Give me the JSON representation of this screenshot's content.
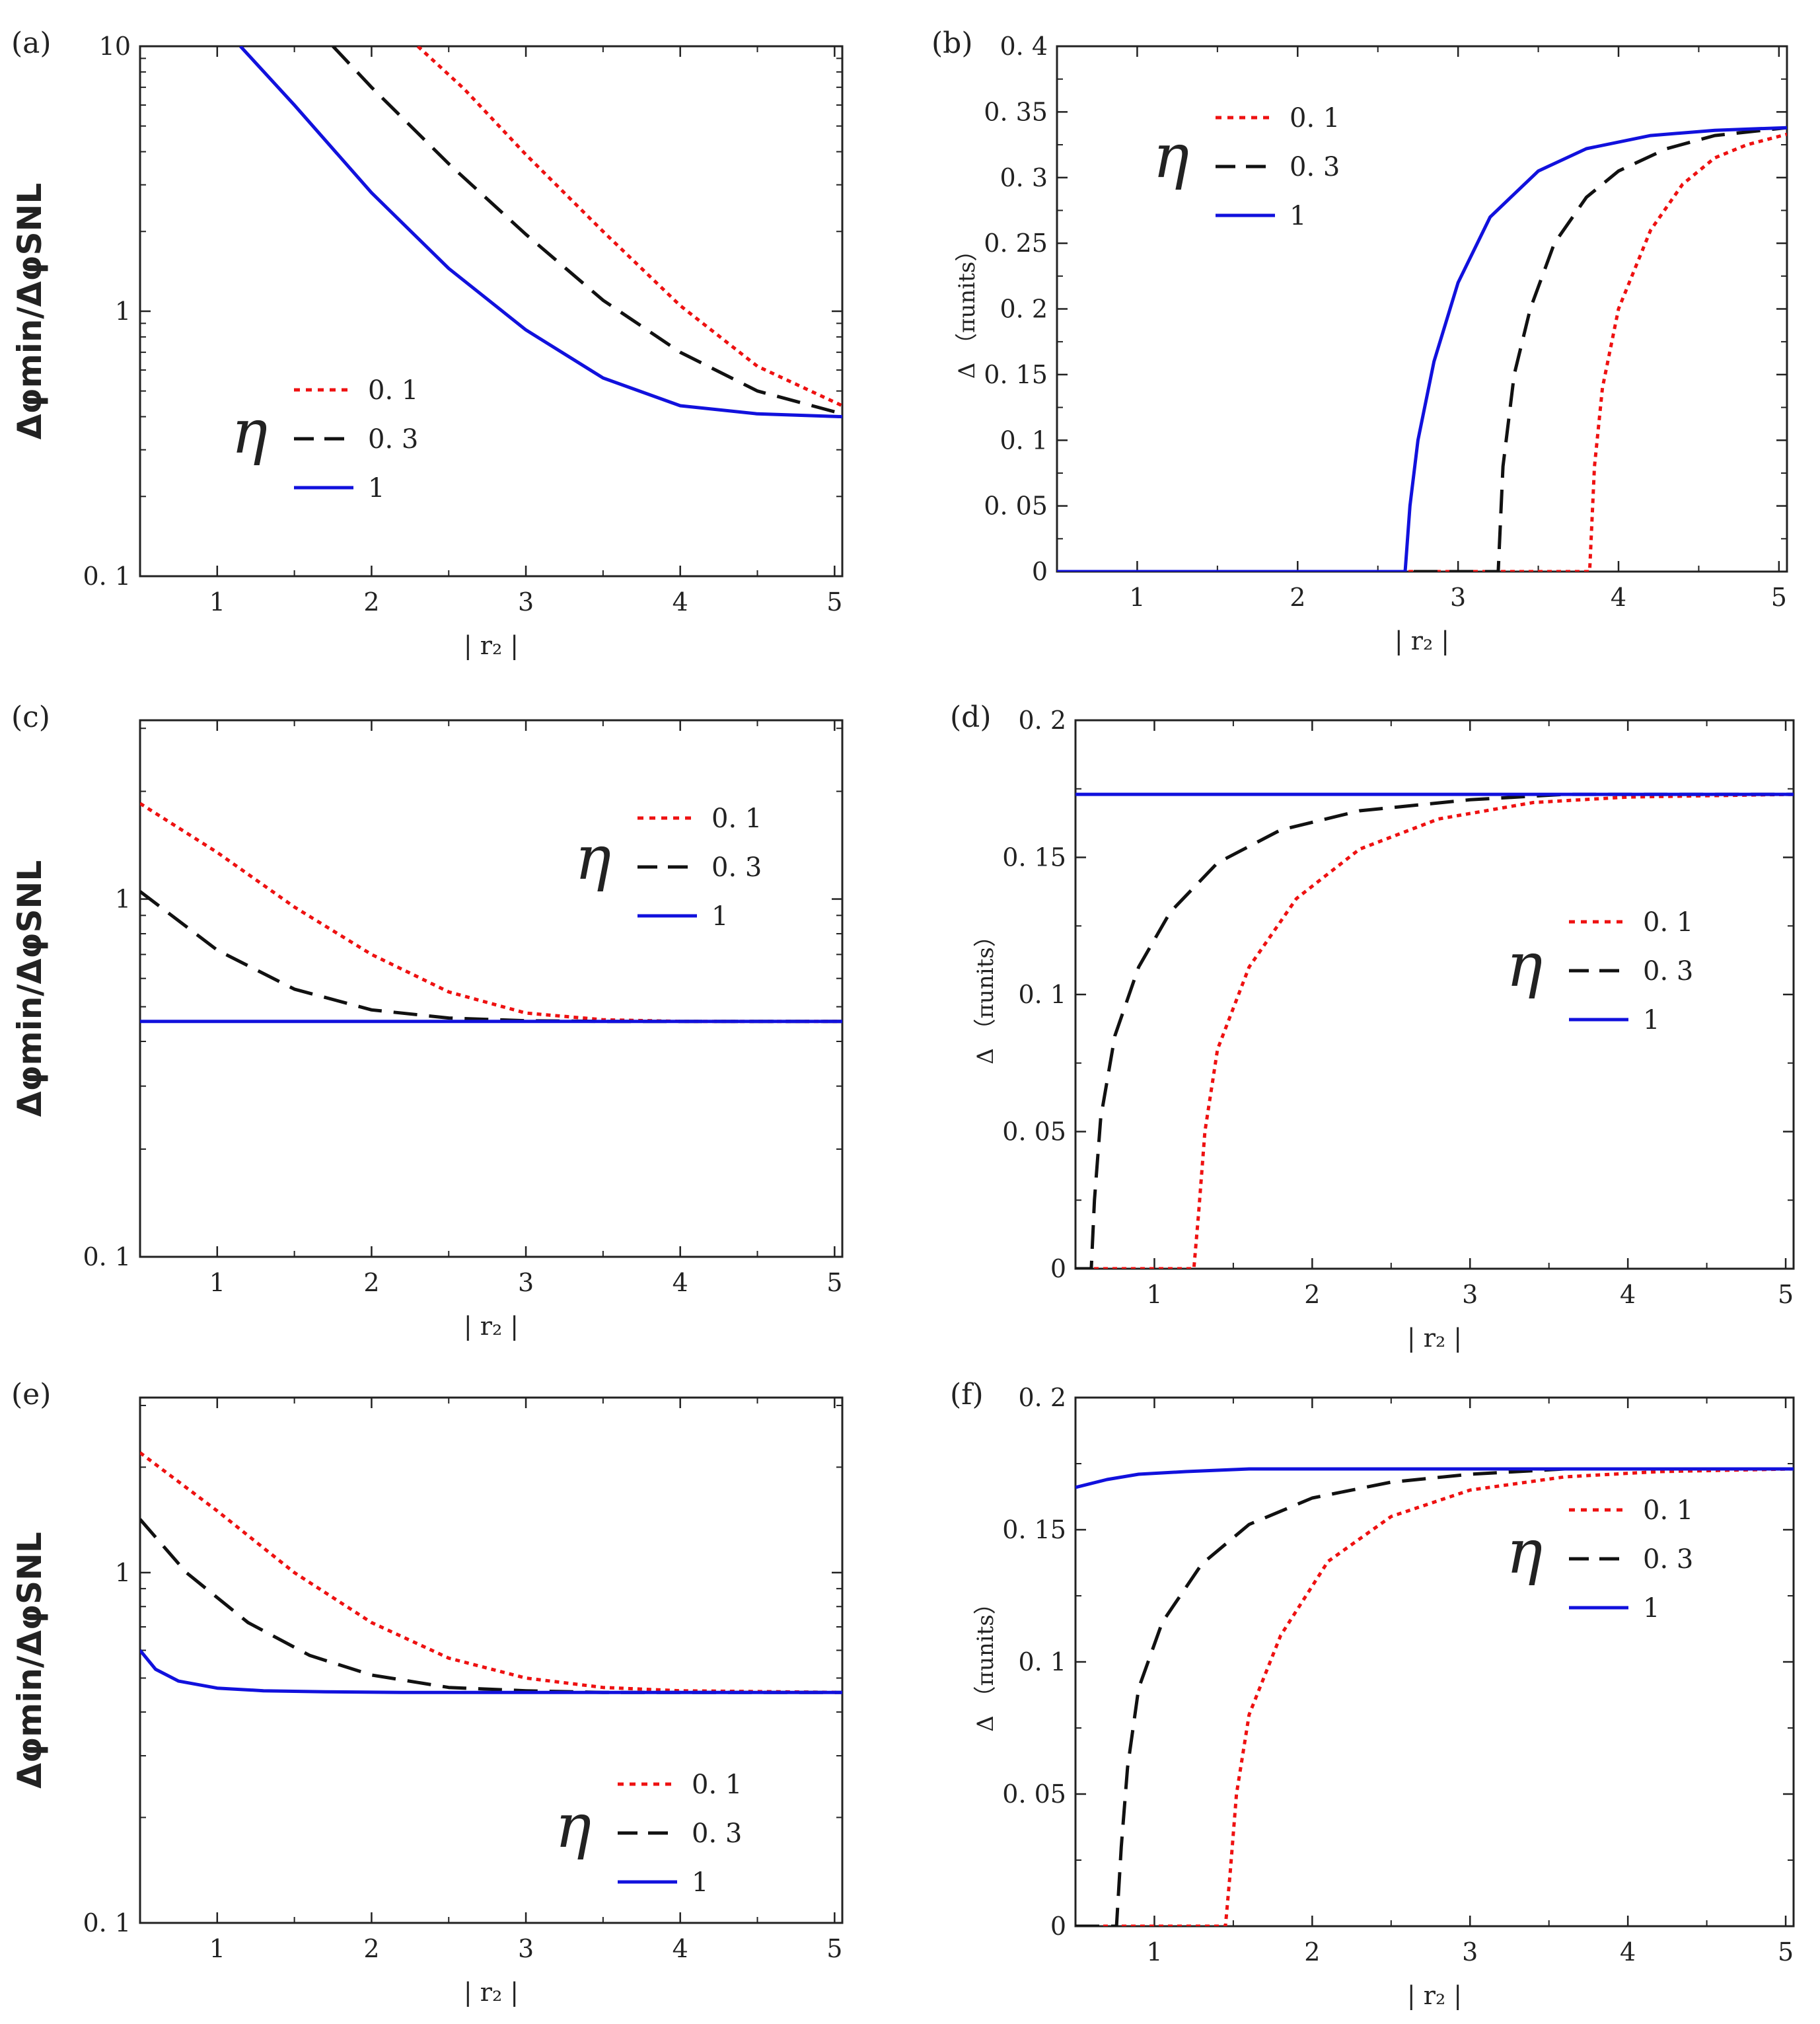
{
  "figure": {
    "description_free": true,
    "colors": {
      "eta_0_1": "#ee1111",
      "eta_0_3": "#111111",
      "eta_1": "#1111dd",
      "axes": "#222222"
    }
  },
  "chart_data": [
    {
      "panel": "(a)",
      "type": "line",
      "xlabel": "| r₂ |",
      "ylabel": "Δφmin/ΔφSNL",
      "yscale": "log",
      "xlim": [
        0.5,
        5.05
      ],
      "ylim": [
        0.1,
        10
      ],
      "xticks": [
        1,
        2,
        3,
        4,
        5
      ],
      "xtick_labels": [
        "1",
        "2",
        "3",
        "4",
        "5"
      ],
      "yticks": [
        0.1,
        1,
        10
      ],
      "ytick_labels": [
        "0. 1",
        "1",
        "10"
      ],
      "legend_title": "η",
      "legend_location": "lower-center",
      "series": [
        {
          "name": "0. 1",
          "style": "dotted",
          "color": "#ee1111",
          "x": [
            2.3,
            2.6,
            3.0,
            3.5,
            4.0,
            4.5,
            5.05
          ],
          "y": [
            10,
            6.9,
            3.9,
            2.0,
            1.05,
            0.62,
            0.44
          ]
        },
        {
          "name": "0. 3",
          "style": "dashed",
          "color": "#111111",
          "x": [
            1.75,
            2.0,
            2.5,
            3.0,
            3.5,
            4.0,
            4.5,
            5.05
          ],
          "y": [
            10,
            7.0,
            3.6,
            1.95,
            1.1,
            0.7,
            0.5,
            0.41
          ]
        },
        {
          "name": "1",
          "style": "solid",
          "color": "#1111dd",
          "x": [
            1.15,
            1.5,
            2.0,
            2.5,
            3.0,
            3.5,
            4.0,
            4.5,
            5.05
          ],
          "y": [
            10,
            6.0,
            2.8,
            1.45,
            0.85,
            0.56,
            0.44,
            0.41,
            0.4
          ]
        }
      ]
    },
    {
      "panel": "(b)",
      "type": "line",
      "xlabel": "| r₂ |",
      "ylabel": "Δ （πunits）",
      "xlim": [
        0.5,
        5.05
      ],
      "ylim": [
        0,
        0.4
      ],
      "xticks": [
        1,
        2,
        3,
        4,
        5
      ],
      "xtick_labels": [
        "1",
        "2",
        "3",
        "4",
        "5"
      ],
      "yticks": [
        0,
        0.05,
        0.1,
        0.15,
        0.2,
        0.25,
        0.3,
        0.35,
        0.4
      ],
      "ytick_labels": [
        "0",
        "0. 05",
        "0. 1",
        "0. 15",
        "0. 2",
        "0. 25",
        "0. 3",
        "0. 35",
        "0. 4"
      ],
      "legend_title": "η",
      "legend_location": "top-left",
      "series": [
        {
          "name": "0. 1",
          "style": "dotted",
          "color": "#ee1111",
          "x": [
            0.5,
            3.82,
            3.85,
            3.9,
            4.0,
            4.2,
            4.4,
            4.6,
            4.8,
            5.05
          ],
          "y": [
            0,
            0,
            0.08,
            0.14,
            0.2,
            0.26,
            0.295,
            0.315,
            0.325,
            0.333
          ]
        },
        {
          "name": "0. 3",
          "style": "dashed",
          "color": "#111111",
          "x": [
            0.5,
            3.25,
            3.28,
            3.35,
            3.45,
            3.6,
            3.8,
            4.0,
            4.3,
            4.6,
            5.05
          ],
          "y": [
            0,
            0,
            0.08,
            0.15,
            0.2,
            0.25,
            0.285,
            0.305,
            0.322,
            0.332,
            0.338
          ]
        },
        {
          "name": "1",
          "style": "solid",
          "color": "#1111dd",
          "x": [
            0.5,
            2.67,
            2.7,
            2.75,
            2.85,
            3.0,
            3.2,
            3.5,
            3.8,
            4.2,
            4.6,
            5.05
          ],
          "y": [
            0,
            0,
            0.05,
            0.1,
            0.16,
            0.22,
            0.27,
            0.305,
            0.322,
            0.332,
            0.336,
            0.338
          ]
        }
      ]
    },
    {
      "panel": "(c)",
      "type": "line",
      "xlabel": "| r₂ |",
      "ylabel": "Δφmin/ΔφSNL",
      "yscale": "log",
      "xlim": [
        0.5,
        5.05
      ],
      "ylim": [
        0.1,
        3.16
      ],
      "xticks": [
        1,
        2,
        3,
        4,
        5
      ],
      "xtick_labels": [
        "1",
        "2",
        "3",
        "4",
        "5"
      ],
      "yticks": [
        0.1,
        1
      ],
      "ytick_labels": [
        "0. 1",
        "1"
      ],
      "legend_title": "η",
      "legend_location": "top-right",
      "series": [
        {
          "name": "0. 1",
          "style": "dotted",
          "color": "#ee1111",
          "x": [
            0.5,
            1.0,
            1.5,
            2.0,
            2.5,
            3.0,
            3.5,
            4.0,
            5.05
          ],
          "y": [
            1.85,
            1.35,
            0.95,
            0.7,
            0.55,
            0.48,
            0.46,
            0.455,
            0.455
          ]
        },
        {
          "name": "0. 3",
          "style": "dashed",
          "color": "#111111",
          "x": [
            0.5,
            1.0,
            1.5,
            2.0,
            2.5,
            3.0,
            3.5,
            5.05
          ],
          "y": [
            1.05,
            0.72,
            0.56,
            0.49,
            0.465,
            0.457,
            0.455,
            0.455
          ]
        },
        {
          "name": "1",
          "style": "solid",
          "color": "#1111dd",
          "x": [
            0.5,
            5.05
          ],
          "y": [
            0.455,
            0.455
          ]
        }
      ]
    },
    {
      "panel": "(d)",
      "type": "line",
      "xlabel": "| r₂ |",
      "ylabel": "Δ （πunits）",
      "xlim": [
        0.5,
        5.05
      ],
      "ylim": [
        0,
        0.2
      ],
      "xticks": [
        1,
        2,
        3,
        4,
        5
      ],
      "xtick_labels": [
        "1",
        "2",
        "3",
        "4",
        "5"
      ],
      "yticks": [
        0,
        0.05,
        0.1,
        0.15,
        0.2
      ],
      "ytick_labels": [
        "0",
        "0. 05",
        "0. 1",
        "0. 15",
        "0. 2"
      ],
      "legend_title": "η",
      "legend_location": "center-right",
      "series": [
        {
          "name": "0. 1",
          "style": "dotted",
          "color": "#ee1111",
          "x": [
            0.5,
            1.25,
            1.28,
            1.32,
            1.4,
            1.6,
            1.9,
            2.3,
            2.8,
            3.4,
            4.0,
            5.05
          ],
          "y": [
            0,
            0,
            0.02,
            0.05,
            0.08,
            0.11,
            0.135,
            0.153,
            0.164,
            0.17,
            0.172,
            0.173
          ]
        },
        {
          "name": "0. 3",
          "style": "dashed",
          "color": "#111111",
          "x": [
            0.5,
            0.6,
            0.62,
            0.66,
            0.75,
            0.9,
            1.1,
            1.4,
            1.8,
            2.3,
            3.0,
            3.6,
            5.05
          ],
          "y": [
            0,
            0,
            0.025,
            0.055,
            0.085,
            0.11,
            0.13,
            0.148,
            0.16,
            0.167,
            0.171,
            0.173,
            0.173
          ]
        },
        {
          "name": "1",
          "style": "solid",
          "color": "#1111dd",
          "x": [
            0.5,
            5.05
          ],
          "y": [
            0.173,
            0.173
          ]
        }
      ]
    },
    {
      "panel": "(e)",
      "type": "line",
      "xlabel": "| r₂ |",
      "ylabel": "Δφmin/ΔφSNL",
      "yscale": "log",
      "xlim": [
        0.5,
        5.05
      ],
      "ylim": [
        0.1,
        3.16
      ],
      "xticks": [
        1,
        2,
        3,
        4,
        5
      ],
      "xtick_labels": [
        "1",
        "2",
        "3",
        "4",
        "5"
      ],
      "yticks": [
        0.1,
        1
      ],
      "ytick_labels": [
        "0. 1",
        "1"
      ],
      "legend_title": "η",
      "legend_location": "lower-right",
      "series": [
        {
          "name": "0. 1",
          "style": "dotted",
          "color": "#ee1111",
          "x": [
            0.5,
            1.0,
            1.5,
            2.0,
            2.5,
            3.0,
            3.5,
            4.0,
            5.05
          ],
          "y": [
            2.2,
            1.5,
            1.0,
            0.72,
            0.57,
            0.5,
            0.47,
            0.46,
            0.455
          ]
        },
        {
          "name": "0. 3",
          "style": "dashed",
          "color": "#111111",
          "x": [
            0.5,
            0.8,
            1.2,
            1.6,
            2.0,
            2.5,
            3.0,
            3.5,
            5.05
          ],
          "y": [
            1.42,
            1.0,
            0.72,
            0.58,
            0.51,
            0.47,
            0.46,
            0.455,
            0.455
          ]
        },
        {
          "name": "1",
          "style": "solid",
          "color": "#1111dd",
          "x": [
            0.5,
            0.6,
            0.75,
            1.0,
            1.3,
            1.7,
            2.2,
            5.05
          ],
          "y": [
            0.6,
            0.53,
            0.49,
            0.468,
            0.46,
            0.457,
            0.455,
            0.455
          ]
        }
      ]
    },
    {
      "panel": "(f)",
      "type": "line",
      "xlabel": "| r₂ |",
      "ylabel": "Δ （πunits）",
      "xlim": [
        0.5,
        5.05
      ],
      "ylim": [
        0,
        0.2
      ],
      "xticks": [
        1,
        2,
        3,
        4,
        5
      ],
      "xtick_labels": [
        "1",
        "2",
        "3",
        "4",
        "5"
      ],
      "yticks": [
        0,
        0.05,
        0.1,
        0.15,
        0.2
      ],
      "ytick_labels": [
        "0",
        "0. 05",
        "0. 1",
        "0. 15",
        "0. 2"
      ],
      "legend_title": "η",
      "legend_location": "top-right",
      "series": [
        {
          "name": "0. 1",
          "style": "dotted",
          "color": "#ee1111",
          "x": [
            0.5,
            1.45,
            1.48,
            1.52,
            1.6,
            1.8,
            2.1,
            2.5,
            3.0,
            3.6,
            4.2,
            5.05
          ],
          "y": [
            0,
            0,
            0.02,
            0.05,
            0.08,
            0.11,
            0.138,
            0.155,
            0.165,
            0.17,
            0.172,
            0.173
          ]
        },
        {
          "name": "0. 3",
          "style": "dashed",
          "color": "#111111",
          "x": [
            0.5,
            0.76,
            0.79,
            0.83,
            0.9,
            1.05,
            1.3,
            1.6,
            2.0,
            2.5,
            3.0,
            3.6,
            5.05
          ],
          "y": [
            0,
            0,
            0.03,
            0.06,
            0.09,
            0.115,
            0.137,
            0.152,
            0.162,
            0.168,
            0.171,
            0.173,
            0.173
          ]
        },
        {
          "name": "1",
          "style": "solid",
          "color": "#1111dd",
          "x": [
            0.5,
            0.7,
            0.9,
            1.2,
            1.6,
            2.2,
            5.05
          ],
          "y": [
            0.166,
            0.169,
            0.171,
            0.172,
            0.173,
            0.173,
            0.173
          ]
        }
      ]
    }
  ]
}
